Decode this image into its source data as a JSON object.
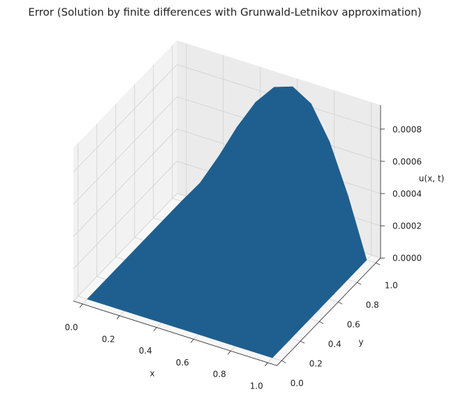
{
  "chart_data": {
    "type": "surface3d",
    "title": "Error (Solution by finite differences with Grunwald-Letnikov approximation)",
    "x_label": "x",
    "y_label": "y",
    "z_label": "u(x, t)",
    "color": "#1f5f8f",
    "x": [
      0,
      0.1,
      0.2,
      0.3,
      0.4,
      0.5,
      0.6,
      0.7,
      0.8,
      0.9,
      1
    ],
    "y": [
      0,
      0.1,
      0.2,
      0.3,
      0.4,
      0.5,
      0.6,
      0.7,
      0.8,
      0.9,
      1
    ],
    "z": [
      [
        0,
        0,
        0,
        0,
        0,
        0,
        0,
        0,
        0,
        0,
        0
      ],
      [
        0,
        0,
        1e-05,
        2e-05,
        2e-05,
        3e-05,
        3e-05,
        3e-05,
        2e-05,
        1e-05,
        0
      ],
      [
        0,
        1e-05,
        3e-05,
        5e-05,
        7e-05,
        8e-05,
        8e-05,
        8e-05,
        6e-05,
        3e-05,
        0
      ],
      [
        0,
        2e-05,
        6e-05,
        9e-05,
        0.00012,
        0.00015,
        0.00015,
        0.00014,
        0.00011,
        6e-05,
        0
      ],
      [
        0,
        4e-05,
        9e-05,
        0.00014,
        0.00019,
        0.00023,
        0.00024,
        0.00022,
        0.00017,
        9e-05,
        0
      ],
      [
        0,
        5e-05,
        0.00012,
        0.0002,
        0.00027,
        0.00032,
        0.00033,
        0.0003,
        0.00023,
        0.00013,
        0
      ],
      [
        0,
        7e-05,
        0.00016,
        0.00026,
        0.00035,
        0.00041,
        0.00043,
        0.0004,
        0.00031,
        0.00017,
        0
      ],
      [
        0,
        9e-05,
        0.00021,
        0.00033,
        0.00044,
        0.00052,
        0.00054,
        0.0005,
        0.00039,
        0.00021,
        0
      ],
      [
        0,
        0.0001,
        0.00025,
        0.00041,
        0.00054,
        0.00064,
        0.00067,
        0.00061,
        0.00047,
        0.00026,
        0
      ],
      [
        0,
        0.00012,
        0.0003,
        0.00049,
        0.00065,
        0.00076,
        0.00079,
        0.00073,
        0.00057,
        0.00031,
        0
      ],
      [
        0,
        0.00015,
        0.00035,
        0.00057,
        0.00076,
        0.00089,
        0.00093,
        0.00086,
        0.00066,
        0.00036,
        0
      ]
    ],
    "xlim": [
      0,
      1
    ],
    "ylim": [
      0,
      1
    ],
    "zlim": [
      0,
      0.00095
    ],
    "xticks": [
      {
        "value": 0,
        "label": "0.0"
      },
      0.2,
      0.4,
      0.6,
      0.8,
      {
        "value": 1,
        "label": "1.0"
      }
    ],
    "yticks": [
      {
        "value": 0,
        "label": "0.0"
      },
      0.2,
      0.4,
      0.6,
      0.8,
      {
        "value": 1,
        "label": "1.0"
      }
    ],
    "zticks": [
      {
        "value": 0,
        "label": "0.0000"
      },
      {
        "value": 0.0002,
        "label": "0.0002"
      },
      {
        "value": 0.0004,
        "label": "0.0004"
      },
      {
        "value": 0.0006,
        "label": "0.0006"
      },
      {
        "value": 0.0008,
        "label": "0.0008"
      }
    ],
    "grid": true
  }
}
